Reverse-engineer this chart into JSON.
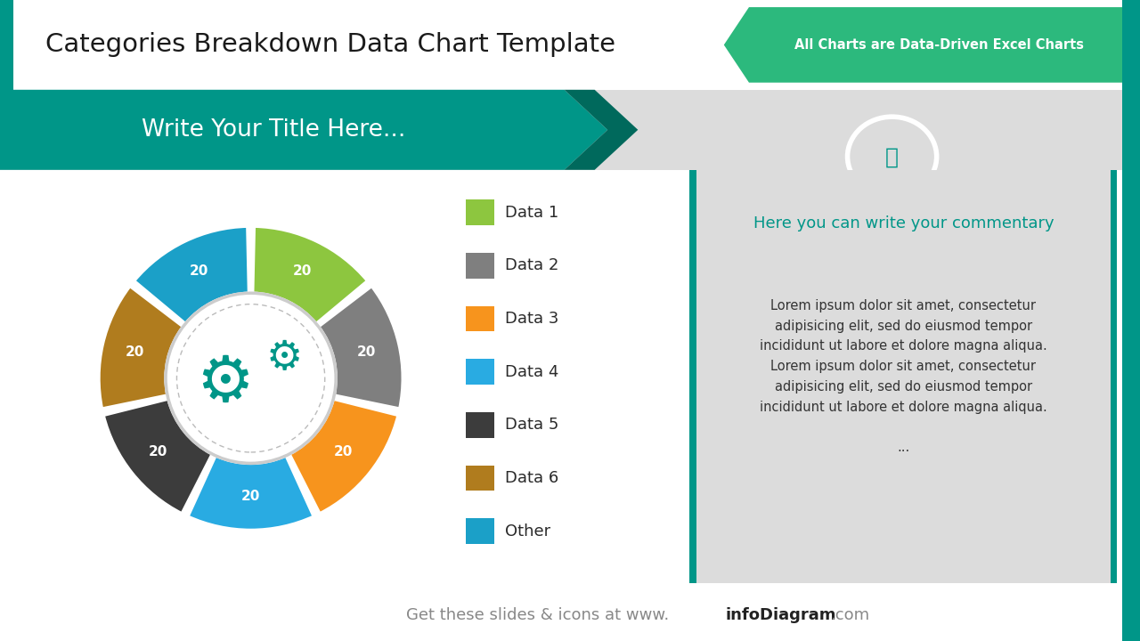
{
  "title": "Categories Breakdown Data Chart Template",
  "badge_text": "All Charts are Data-Driven Excel Charts",
  "subtitle": "Write Your Title Here...",
  "donut_labels": [
    "Data 1",
    "Data 2",
    "Data 3",
    "Data 4",
    "Data 5",
    "Data 6",
    "Other"
  ],
  "donut_values": [
    20,
    20,
    20,
    20,
    20,
    20,
    20
  ],
  "donut_colors": [
    "#8dc63f",
    "#7f7f7f",
    "#f7941d",
    "#29abe2",
    "#3c3c3c",
    "#b07c1e",
    "#1ba0c8"
  ],
  "teal": "#009688",
  "teal_dark": "#00695c",
  "green_badge": "#2cb97d",
  "commentary_title": "Here you can write your commentary",
  "commentary_body": "Lorem ipsum dolor sit amet, consectetur\nadipisicing elit, sed do eiusmod tempor\nincididunt ut labore et dolore magna aliqua.\nLorem ipsum dolor sit amet, consectetur\nadipisicing elit, sed do eiusmod tempor\nincididunt ut labore et dolore magna aliqua.\n\n...",
  "bg_color": "#ffffff",
  "gray_banner_color": "#dcdcdc",
  "commentary_bg": "#dcdcdc"
}
